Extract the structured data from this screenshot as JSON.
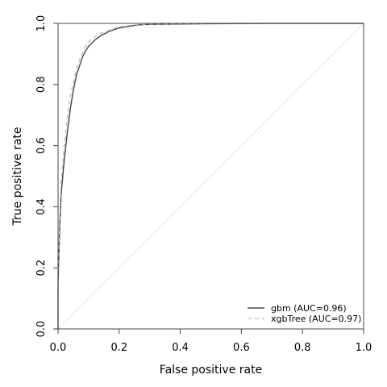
{
  "chart_data": {
    "type": "line",
    "title": "",
    "xlabel": "False positive rate",
    "ylabel": "True positive rate",
    "xlim": [
      0,
      1
    ],
    "ylim": [
      0,
      1
    ],
    "xticks": [
      "0.0",
      "0.2",
      "0.4",
      "0.6",
      "0.8",
      "1.0"
    ],
    "yticks": [
      "0.0",
      "0.2",
      "0.4",
      "0.6",
      "0.8",
      "1.0"
    ],
    "grid": false,
    "legend_position": "bottom-right",
    "diagonal_reference": true,
    "series": [
      {
        "name": "gbm (AUC=0.96)",
        "style": "solid",
        "color": "#444444",
        "x": [
          0.0,
          0.0,
          0.005,
          0.01,
          0.02,
          0.03,
          0.04,
          0.05,
          0.06,
          0.07,
          0.08,
          0.09,
          0.1,
          0.12,
          0.14,
          0.17,
          0.2,
          0.23,
          0.26,
          0.3,
          0.4,
          0.5,
          0.7,
          1.0
        ],
        "y": [
          0.0,
          0.15,
          0.32,
          0.44,
          0.55,
          0.64,
          0.72,
          0.78,
          0.83,
          0.86,
          0.89,
          0.91,
          0.925,
          0.945,
          0.96,
          0.975,
          0.985,
          0.99,
          0.995,
          0.997,
          0.998,
          0.999,
          1.0,
          1.0
        ]
      },
      {
        "name": "xgbTree (AUC=0.97)",
        "style": "dashed",
        "color": "#bbbbbb",
        "x": [
          0.0,
          0.0,
          0.005,
          0.01,
          0.02,
          0.03,
          0.04,
          0.05,
          0.06,
          0.07,
          0.08,
          0.09,
          0.1,
          0.12,
          0.14,
          0.17,
          0.2,
          0.23,
          0.26,
          0.3,
          0.4,
          0.5,
          0.7,
          1.0
        ],
        "y": [
          0.0,
          0.18,
          0.36,
          0.48,
          0.6,
          0.69,
          0.76,
          0.81,
          0.85,
          0.88,
          0.905,
          0.925,
          0.94,
          0.955,
          0.968,
          0.98,
          0.988,
          0.993,
          0.996,
          0.998,
          0.999,
          1.0,
          1.0,
          1.0
        ]
      }
    ]
  }
}
